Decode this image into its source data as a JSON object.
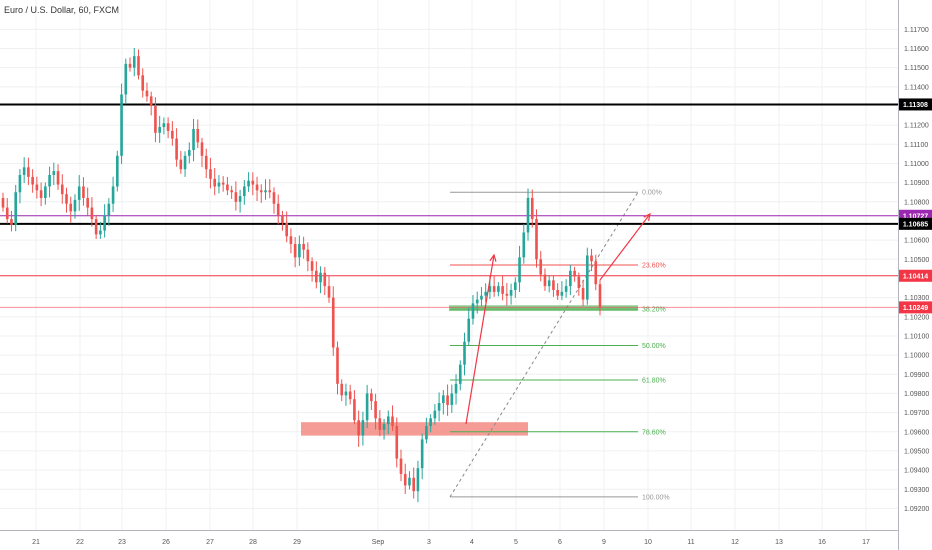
{
  "header": {
    "title": "Euro / U.S. Dollar, 60, FXCM"
  },
  "colors": {
    "up": "#26a69a",
    "down": "#ef5350",
    "grid": "#eef0f3",
    "axis": "#b2b5be",
    "black_line": "#000000",
    "red_line": "#f23645",
    "purple_line": "#9c27b0",
    "fib_grey": "#999999",
    "fib_red": "#ef5350",
    "fib_green": "#4caf50",
    "support_zone": "#f28b82",
    "green_zone": "#81c784",
    "arrow": "#f23645"
  },
  "chart_data": {
    "type": "candlestick",
    "y_range": [
      1.0915,
      1.1178
    ],
    "y_ticks": [
      "1.11700",
      "1.11600",
      "1.11500",
      "1.11400",
      "1.11200",
      "1.11100",
      "1.11000",
      "1.10900",
      "1.10800",
      "1.10600",
      "1.10500",
      "1.10300",
      "1.10200",
      "1.10100",
      "1.10000",
      "1.09900",
      "1.09800",
      "1.09700",
      "1.09600",
      "1.09500",
      "1.09400",
      "1.09300",
      "1.09200"
    ],
    "x_ticks": [
      "21",
      "22",
      "23",
      "26",
      "27",
      "28",
      "29",
      "Sep",
      "3",
      "4",
      "5",
      "6",
      "9",
      "10",
      "11",
      "12",
      "13",
      "16",
      "17"
    ],
    "horizontal_levels": [
      {
        "label": "1.11308",
        "value": 1.11308,
        "color": "#000000"
      },
      {
        "label": "1.10727",
        "value": 1.10727,
        "color": "#9c27b0"
      },
      {
        "label": "1.10685",
        "value": 1.10685,
        "color": "#000000"
      },
      {
        "label": "1.10414",
        "value": 1.10414,
        "color": "#f23645"
      },
      {
        "label": "1.10249",
        "value": 1.10249,
        "color": "#f23645"
      }
    ],
    "fibonacci": [
      {
        "label": "0.00%",
        "value": 1.1085
      },
      {
        "label": "23.60%",
        "value": 1.1047
      },
      {
        "label": "38.20%",
        "value": 1.1024
      },
      {
        "label": "50.00%",
        "value": 1.1005
      },
      {
        "label": "61.80%",
        "value": 1.0987
      },
      {
        "label": "78.60%",
        "value": 1.096
      },
      {
        "label": "100.00%",
        "value": 1.0926
      }
    ],
    "zones": [
      {
        "name": "support",
        "from": 1.0958,
        "to": 1.0965
      },
      {
        "name": "fib-38",
        "from": 1.1023,
        "to": 1.1026
      }
    ],
    "closes": [
      1.1077,
      1.1071,
      1.1068,
      1.1085,
      1.1094,
      1.1098,
      1.1093,
      1.1089,
      1.1086,
      1.1082,
      1.1088,
      1.1094,
      1.1096,
      1.1089,
      1.1084,
      1.1079,
      1.1075,
      1.1081,
      1.1088,
      1.1082,
      1.1077,
      1.1071,
      1.1063,
      1.1065,
      1.1073,
      1.1079,
      1.1088,
      1.1104,
      1.1136,
      1.1152,
      1.115,
      1.1156,
      1.1146,
      1.1138,
      1.1135,
      1.113,
      1.1116,
      1.1119,
      1.1121,
      1.1117,
      1.1113,
      1.1102,
      1.1097,
      1.1104,
      1.1107,
      1.1118,
      1.1111,
      1.1104,
      1.1097,
      1.1092,
      1.1088,
      1.109,
      1.1089,
      1.1086,
      1.1085,
      1.108,
      1.1083,
      1.1088,
      1.1091,
      1.1089,
      1.1086,
      1.1085,
      1.1086,
      1.1085,
      1.1079,
      1.1073,
      1.1069,
      1.1062,
      1.1058,
      1.1051,
      1.1058,
      1.1055,
      1.1049,
      1.1044,
      1.1038,
      1.1043,
      1.1036,
      1.103,
      1.1004,
      1.0985,
      1.0979,
      1.0981,
      1.0977,
      1.0966,
      1.0958,
      1.0966,
      1.098,
      1.0976,
      1.0967,
      1.0961,
      1.0964,
      1.0968,
      1.0963,
      1.0946,
      1.0938,
      1.0932,
      1.0936,
      1.0929,
      1.0941,
      1.0956,
      1.0963,
      1.0967,
      1.0971,
      1.0975,
      1.0979,
      1.0974,
      1.098,
      1.0985,
      1.0995,
      1.1007,
      1.1019,
      1.1027,
      1.1029,
      1.1031,
      1.1033,
      1.1036,
      1.1033,
      1.1036,
      1.1032,
      1.1031,
      1.1034,
      1.1038,
      1.1051,
      1.1064,
      1.1082,
      1.1071,
      1.105,
      1.1042,
      1.1036,
      1.1039,
      1.1034,
      1.1031,
      1.1033,
      1.1036,
      1.1044,
      1.1041,
      1.1035,
      1.1029,
      1.1052,
      1.1049,
      1.1037,
      1.1025
    ]
  }
}
